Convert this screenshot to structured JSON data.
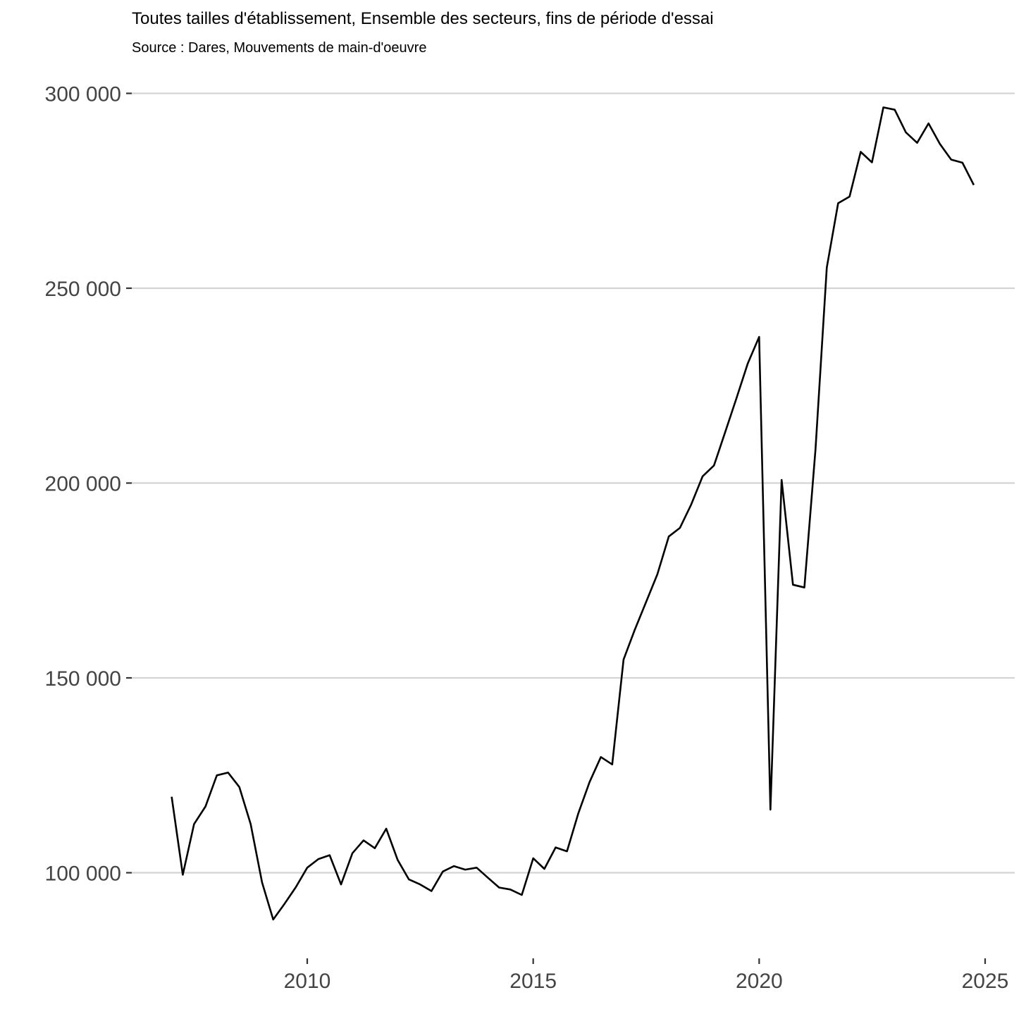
{
  "header": {
    "subtitle": "Toutes tailles d'établissement, Ensemble des secteurs, fins de période d'essai",
    "source": "Source : Dares, Mouvements de main-d'oeuvre"
  },
  "colors": {
    "line": "#000000",
    "grid": "#d4d4d4",
    "tick_text": "#444444",
    "background": "#ffffff"
  },
  "chart_data": {
    "type": "line",
    "title": "",
    "subtitle": "Toutes tailles d'établissement, Ensemble des secteurs, fins de période d'essai",
    "caption": "Source : Dares, Mouvements de main-d'oeuvre",
    "xlabel": "",
    "ylabel": "",
    "x_axis": {
      "type": "date",
      "range": [
        "2006-02-15",
        "2025-08-01"
      ],
      "ticks": [
        "2010-01-01",
        "2015-01-01",
        "2020-01-01",
        "2025-01-01"
      ],
      "tick_labels": [
        "2010",
        "2015",
        "2020",
        "2025"
      ]
    },
    "y_axis": {
      "range": [
        81000,
        308500
      ],
      "ticks": [
        100000,
        150000,
        200000,
        250000,
        300000
      ],
      "tick_labels": [
        "100 000",
        "150 000",
        "200 000",
        "250 000",
        "300 000"
      ]
    },
    "grid": {
      "horizontal_major": true,
      "vertical": false
    },
    "legend": "none",
    "series": [
      {
        "x": [
          "2007-01-01",
          "2007-04-01",
          "2007-07-01",
          "2007-10-01",
          "2008-01-01",
          "2008-04-01",
          "2008-07-01",
          "2008-10-01",
          "2009-01-01",
          "2009-04-01",
          "2009-07-01",
          "2009-10-01",
          "2010-01-01",
          "2010-04-01",
          "2010-07-01",
          "2010-10-01",
          "2011-01-01",
          "2011-04-01",
          "2011-07-01",
          "2011-10-01",
          "2012-01-01",
          "2012-04-01",
          "2012-07-01",
          "2012-10-01",
          "2013-01-01",
          "2013-04-01",
          "2013-07-01",
          "2013-10-01",
          "2014-01-01",
          "2014-04-01",
          "2014-07-01",
          "2014-10-01",
          "2015-01-01",
          "2015-04-01",
          "2015-07-01",
          "2015-10-01",
          "2016-01-01",
          "2016-04-01",
          "2016-07-01",
          "2016-10-01",
          "2017-01-01",
          "2017-04-01",
          "2017-07-01",
          "2017-10-01",
          "2018-01-01",
          "2018-04-01",
          "2018-07-01",
          "2018-10-01",
          "2019-01-01",
          "2019-04-01",
          "2019-07-01",
          "2019-10-01",
          "2020-01-01",
          "2020-04-01",
          "2020-07-01",
          "2020-10-01",
          "2021-01-01",
          "2021-04-01",
          "2021-07-01",
          "2021-10-01",
          "2022-01-01",
          "2022-04-01",
          "2022-07-01",
          "2022-10-01",
          "2023-01-01",
          "2023-04-01",
          "2023-07-01",
          "2023-10-01",
          "2024-01-01",
          "2024-04-01",
          "2024-07-01",
          "2024-10-01"
        ],
        "values": [
          119500,
          99500,
          112500,
          117000,
          125000,
          125700,
          122000,
          112500,
          97500,
          88000,
          92000,
          96300,
          101300,
          103500,
          104500,
          97000,
          105000,
          108300,
          106300,
          111300,
          103300,
          98300,
          97000,
          95300,
          100300,
          101700,
          100800,
          101300,
          98700,
          96200,
          95700,
          94300,
          103700,
          101000,
          106500,
          105500,
          115300,
          123300,
          129700,
          127800,
          154700,
          162300,
          169400,
          176600,
          186300,
          188500,
          194500,
          201700,
          204500,
          213000,
          221700,
          230700,
          237500,
          116200,
          200800,
          173900,
          173200,
          208700,
          255300,
          271800,
          273500,
          285000,
          282300,
          296400,
          295800,
          290000,
          287300,
          292300,
          287000,
          283000,
          282200,
          276500
        ]
      }
    ]
  }
}
